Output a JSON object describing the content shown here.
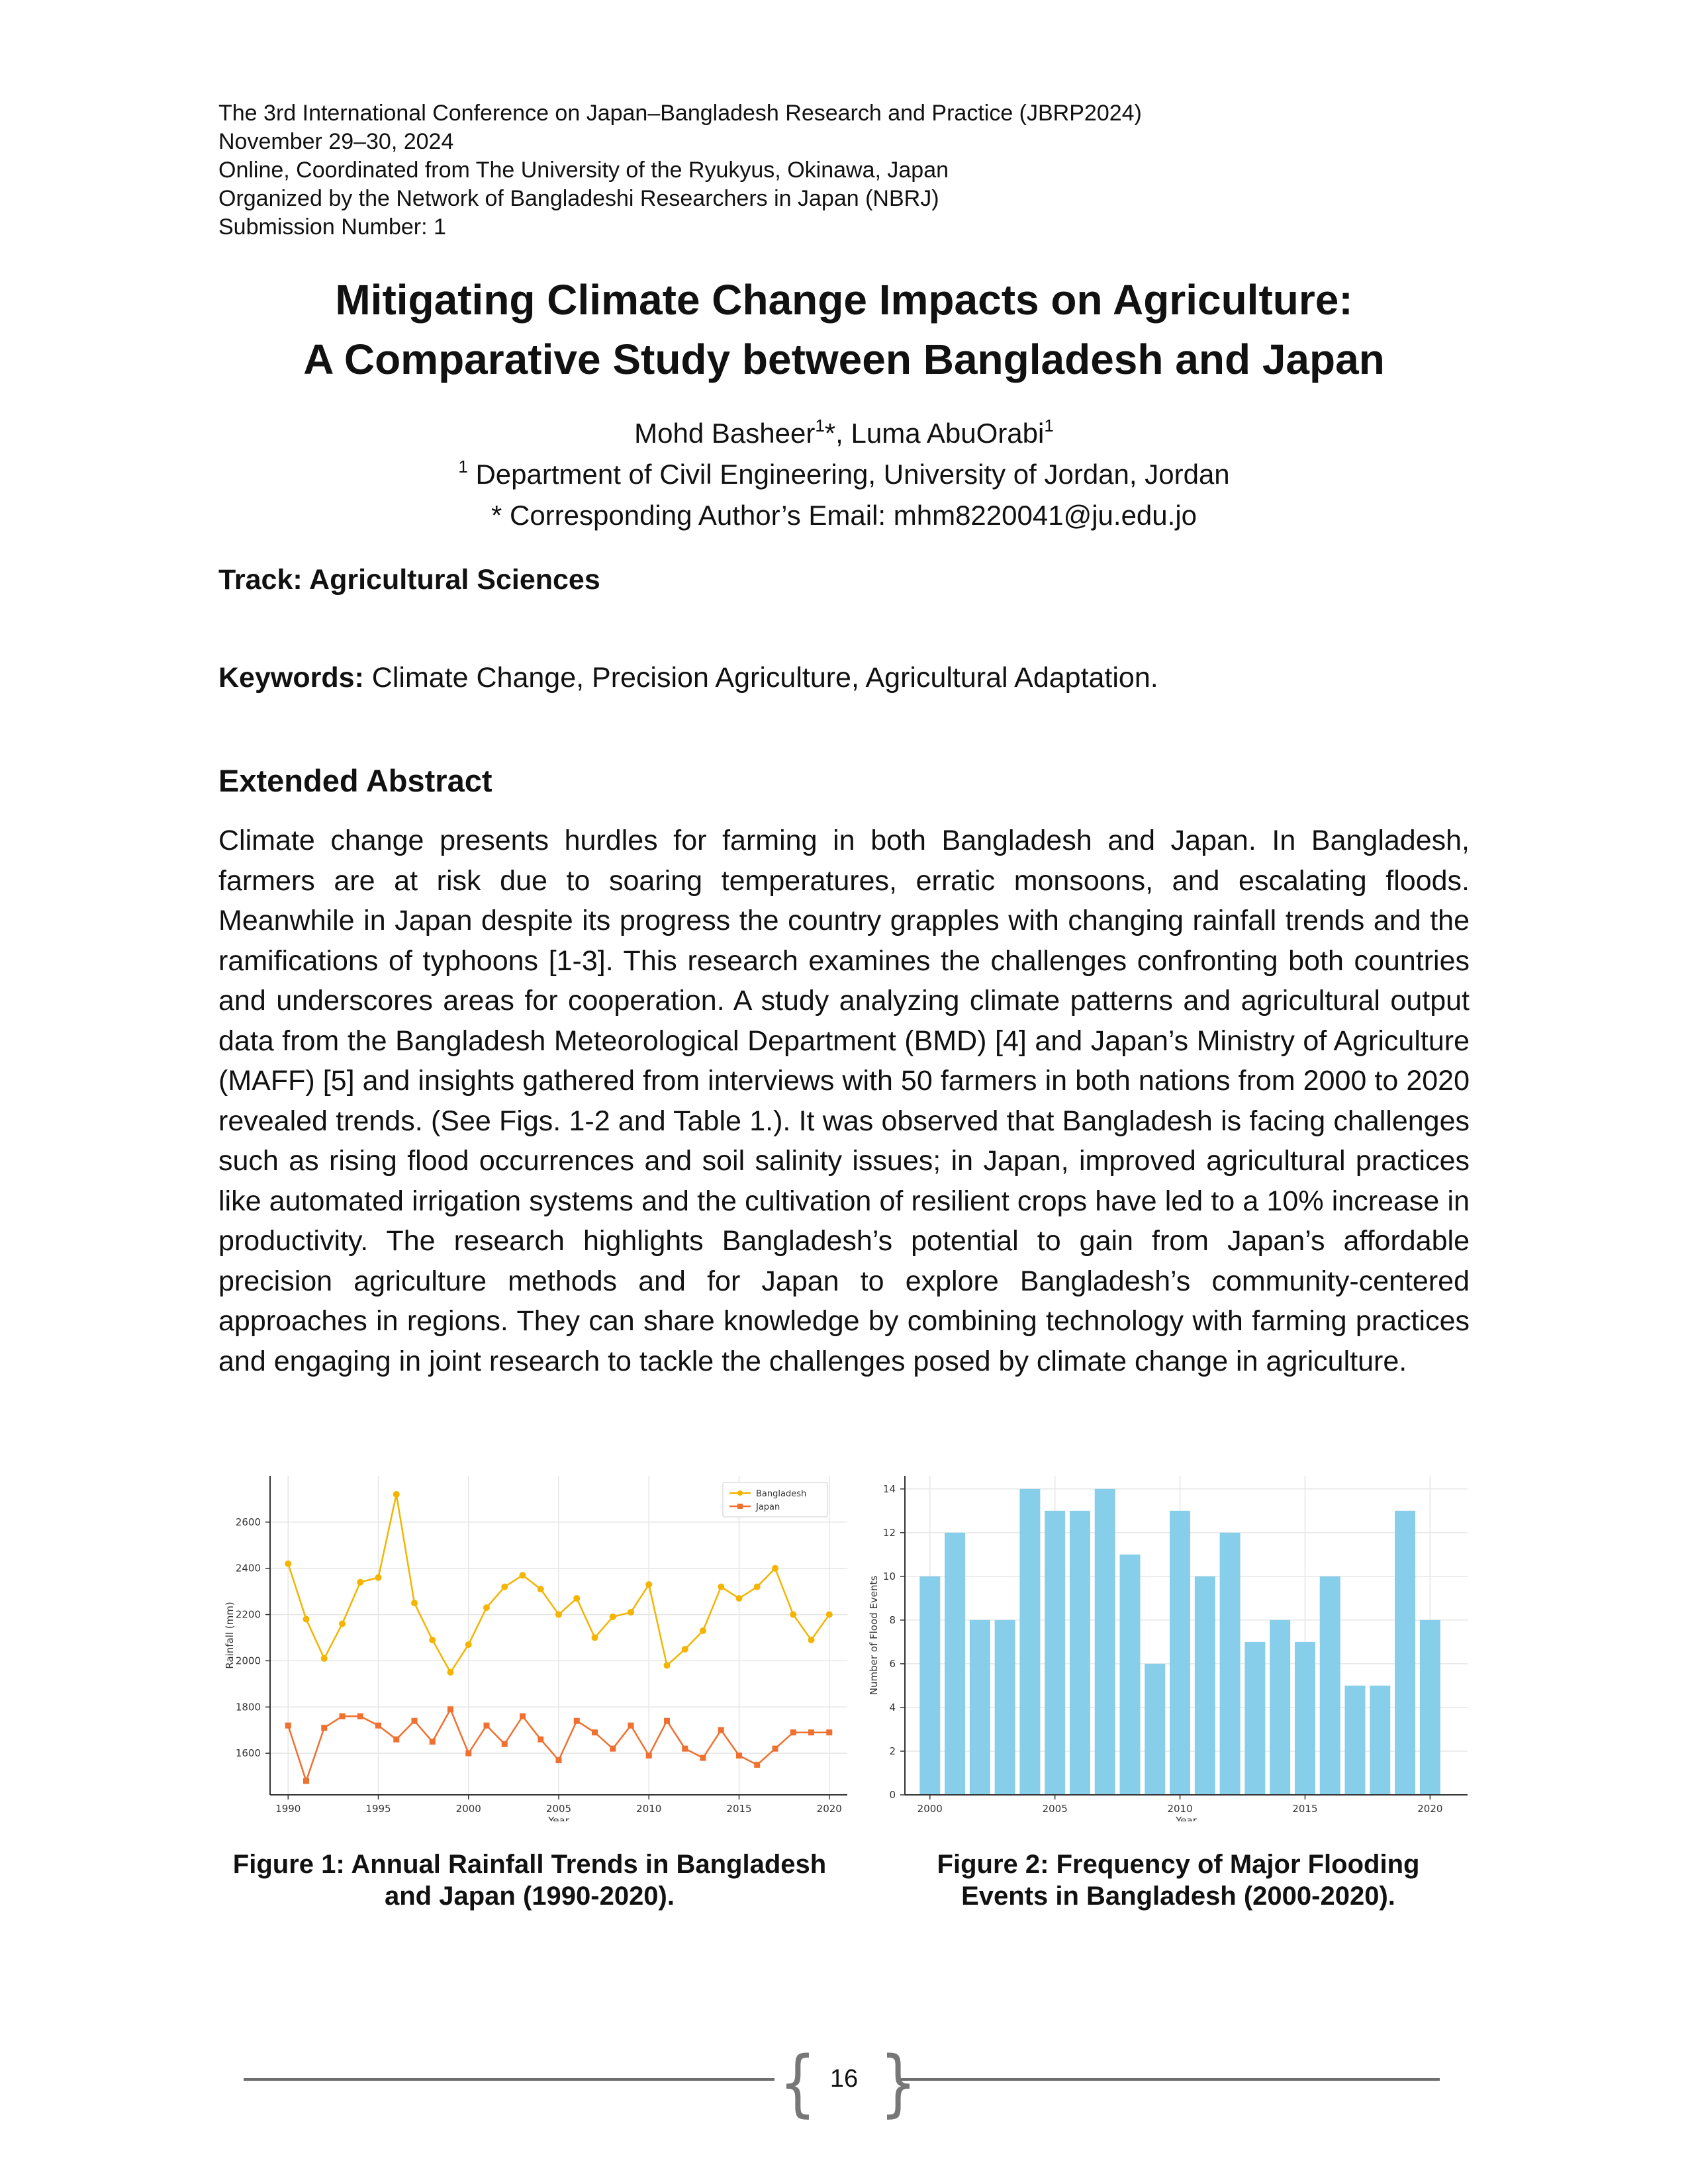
{
  "header": {
    "lines": [
      "The 3rd International Conference on Japan–Bangladesh Research and Practice (JBRP2024)",
      "November 29–30, 2024",
      "Online, Coordinated from The University of the Ryukyus, Okinawa, Japan",
      "Organized by the Network of Bangladeshi Researchers in Japan (NBRJ)",
      "Submission Number: 1"
    ]
  },
  "paper": {
    "title_line1": "Mitigating Climate Change Impacts on Agriculture:",
    "title_line2": "A Comparative Study between Bangladesh and Japan",
    "author1": "Mohd Basheer",
    "author1_sup": "1",
    "author1_mark": "*",
    "author_sep": ", ",
    "author2": "Luma AbuOrabi",
    "author2_sup": "1",
    "affiliation_sup": "1",
    "affiliation": " Department of Civil Engineering, University of Jordan, Jordan",
    "email_line": "* Corresponding Author’s Email: mhm8220041@ju.edu.jo",
    "track": "Track: Agricultural Sciences",
    "keywords_label": "Keywords:",
    "keywords": " Climate Change, Precision Agriculture, Agricultural Adaptation.",
    "section_heading": "Extended Abstract",
    "abstract": "Climate change presents hurdles for farming in both Bangladesh and Japan. In Bangladesh, farmers are at risk due to soaring temperatures, erratic monsoons, and escalating floods. Meanwhile in Japan despite its progress the country grapples with changing rainfall trends and the ramifications of typhoons [1-3]. This research examines the challenges confronting both countries and underscores areas for cooperation. A study analyzing climate patterns and agricultural output data from the Bangladesh Meteorological Department (BMD) [4] and Japan’s Ministry of Agriculture (MAFF) [5] and insights gathered from interviews with 50 farmers in both nations from 2000 to 2020 revealed trends. (See Figs. 1-2 and Table 1.). It was observed that Bangladesh is facing challenges such as rising flood occurrences and soil salinity issues; in Japan, improved agricultural practices like automated irrigation systems and the cultivation of resilient crops have led to a 10% increase in productivity. The research highlights Bangladesh’s potential to gain from Japan’s affordable precision agriculture methods and for Japan to explore Bangladesh’s community-centered approaches in regions. They can share knowledge by combining technology with farming practices and engaging in joint research to tackle the challenges posed by climate change in agriculture.",
    "figure1_caption_line1": "Figure 1: Annual Rainfall Trends in Bangladesh",
    "figure1_caption_line2": "and Japan (1990-2020).",
    "figure2_caption_line1": "Figure 2: Frequency of Major Flooding",
    "figure2_caption_line2": "Events in Bangladesh (2000-2020).",
    "page_number": "16"
  },
  "chart_data": [
    {
      "type": "line",
      "title": "",
      "xlabel": "Year",
      "ylabel": "Rainfall (mm)",
      "xlim": [
        1989,
        2021
      ],
      "ylim": [
        1420,
        2800
      ],
      "xticks": [
        1990,
        1995,
        2000,
        2005,
        2010,
        2015,
        2020
      ],
      "yticks": [
        1600,
        1800,
        2000,
        2200,
        2400,
        2600
      ],
      "grid": true,
      "legend_position": "top-right",
      "x": [
        1990,
        1991,
        1992,
        1993,
        1994,
        1995,
        1996,
        1997,
        1998,
        1999,
        2000,
        2001,
        2002,
        2003,
        2004,
        2005,
        2006,
        2007,
        2008,
        2009,
        2010,
        2011,
        2012,
        2013,
        2014,
        2015,
        2016,
        2017,
        2018,
        2019,
        2020
      ],
      "series": [
        {
          "name": "Bangladesh",
          "color": "#f4b400",
          "marker": "circle",
          "values": [
            2420,
            2180,
            2010,
            2160,
            2340,
            2360,
            2720,
            2250,
            2090,
            1950,
            2070,
            2230,
            2320,
            2370,
            2310,
            2200,
            2270,
            2100,
            2190,
            2210,
            2330,
            1980,
            2050,
            2130,
            2320,
            2270,
            2320,
            2400,
            2200,
            2090,
            2200
          ]
        },
        {
          "name": "Japan",
          "color": "#f07030",
          "marker": "square",
          "values": [
            1720,
            1480,
            1710,
            1760,
            1760,
            1720,
            1660,
            1740,
            1650,
            1790,
            1600,
            1720,
            1640,
            1760,
            1660,
            1570,
            1740,
            1690,
            1620,
            1720,
            1590,
            1740,
            1620,
            1580,
            1700,
            1590,
            1550,
            1620,
            1690,
            1690,
            1690
          ]
        }
      ]
    },
    {
      "type": "bar",
      "title": "",
      "xlabel": "Year",
      "ylabel": "Number of Flood Events",
      "xlim": [
        1999,
        2021.5
      ],
      "ylim": [
        0,
        14.6
      ],
      "xticks": [
        2000,
        2005,
        2010,
        2015,
        2020
      ],
      "yticks": [
        0,
        2,
        4,
        6,
        8,
        10,
        12,
        14
      ],
      "grid": true,
      "color": "#87ceeb",
      "categories": [
        2000,
        2001,
        2002,
        2003,
        2004,
        2005,
        2006,
        2007,
        2008,
        2009,
        2010,
        2011,
        2012,
        2013,
        2014,
        2015,
        2016,
        2017,
        2018,
        2019,
        2020
      ],
      "values": [
        10,
        12,
        8,
        8,
        14,
        13,
        13,
        14,
        11,
        6,
        13,
        10,
        12,
        7,
        8,
        7,
        10,
        5,
        5,
        13,
        8
      ]
    }
  ]
}
